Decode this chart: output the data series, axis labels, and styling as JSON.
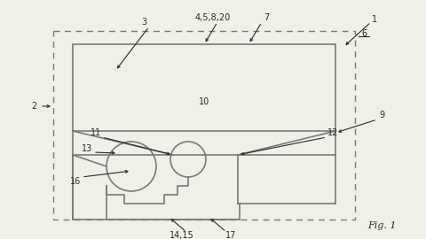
{
  "bg_color": "#f0efe8",
  "line_color": "#7a7a7a",
  "line_width": 1.2,
  "text_color": "#2a2a2a",
  "fig_width": 4.8,
  "fig_height": 2.7,
  "dpi": 100
}
